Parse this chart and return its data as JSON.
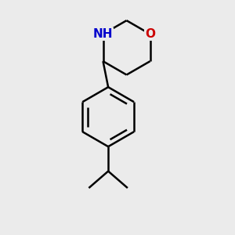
{
  "background_color": "#ebebeb",
  "bond_color": "#000000",
  "O_color": "#cc0000",
  "N_color": "#0000cc",
  "line_width": 1.8,
  "font_size_O": 11,
  "font_size_N": 11,
  "font_size_H": 10,
  "fig_size": [
    3.0,
    3.0
  ],
  "dpi": 100
}
